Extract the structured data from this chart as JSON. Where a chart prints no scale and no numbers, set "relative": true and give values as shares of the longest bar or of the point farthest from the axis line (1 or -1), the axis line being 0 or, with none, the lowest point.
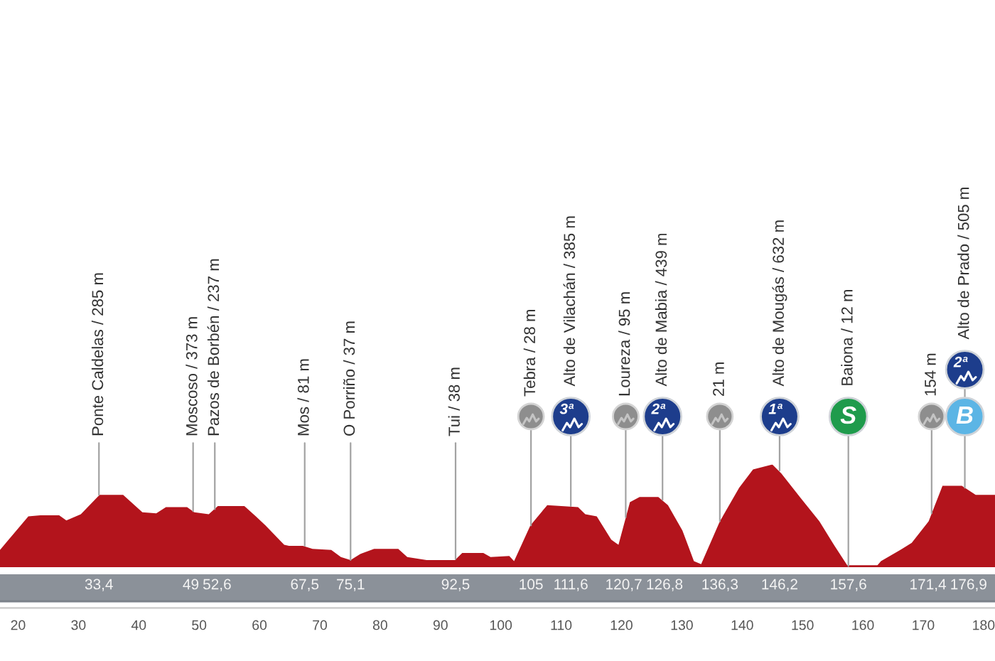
{
  "chart_data": {
    "type": "area",
    "relative": true,
    "color": "#b3141c",
    "x": [
      17.0,
      21.7,
      23.7,
      26.8,
      28.0,
      30.4,
      33.5,
      37.4,
      40.6,
      42.9,
      44.5,
      48.0,
      49.2,
      51.6,
      53.1,
      57.5,
      59.4,
      61.0,
      64.1,
      64.9,
      67.2,
      68.8,
      71.9,
      73.5,
      75.1,
      76.7,
      79.0,
      83.0,
      84.5,
      87.7,
      92.4,
      93.6,
      97.1,
      98.3,
      101.4,
      102.2,
      104.9,
      107.7,
      112.8,
      114.0,
      115.9,
      118.3,
      119.5,
      121.4,
      123.0,
      126.1,
      127.7,
      130.1,
      132.0,
      133.2,
      136.3,
      139.5,
      141.8,
      145.0,
      146.5,
      149.7,
      152.8,
      155.2,
      157.5,
      162.3,
      163.0,
      166.2,
      168.1,
      170.9,
      173.2,
      176.4,
      178.7,
      181.9
    ],
    "values": [
      0.16,
      0.49,
      0.5,
      0.5,
      0.45,
      0.51,
      0.7,
      0.7,
      0.53,
      0.52,
      0.58,
      0.58,
      0.53,
      0.51,
      0.59,
      0.59,
      0.49,
      0.4,
      0.21,
      0.2,
      0.2,
      0.17,
      0.16,
      0.09,
      0.06,
      0.12,
      0.17,
      0.17,
      0.09,
      0.06,
      0.06,
      0.13,
      0.13,
      0.09,
      0.1,
      0.05,
      0.4,
      0.6,
      0.58,
      0.51,
      0.49,
      0.26,
      0.21,
      0.63,
      0.68,
      0.68,
      0.6,
      0.35,
      0.05,
      0.02,
      0.44,
      0.77,
      0.95,
      1.0,
      0.91,
      0.67,
      0.44,
      0.21,
      0,
      0,
      0.05,
      0.16,
      0.23,
      0.44,
      0.79,
      0.79,
      0.7,
      0.7
    ],
    "xlim": [
      17.0,
      181.9
    ],
    "xticks": [
      20,
      30,
      40,
      50,
      60,
      70,
      80,
      90,
      100,
      110,
      120,
      130,
      140,
      150,
      160,
      170,
      180
    ],
    "x2lim": [
      17.0,
      181.9
    ],
    "x2ticks": [
      {
        "value": 33.4,
        "label": "33,4"
      },
      49,
      {
        "value": 52.6,
        "label": "52,6"
      },
      {
        "value": 67.5,
        "label": "67,5"
      },
      {
        "value": 75.1,
        "label": "75,1"
      },
      {
        "value": 92.5,
        "label": "92,5"
      },
      105,
      {
        "value": 111.6,
        "label": "111,6"
      },
      {
        "value": 120.7,
        "label": "120,7"
      },
      {
        "value": 126.8,
        "label": "126,8"
      },
      {
        "value": 136.3,
        "label": "136,3"
      },
      {
        "value": 146.2,
        "label": "146,2"
      },
      {
        "value": 157.6,
        "label": "157,6"
      },
      {
        "value": 171.4,
        "label": "171,4"
      },
      {
        "value": 176.9,
        "label": "176,9"
      }
    ],
    "annotations": [
      {
        "text": "Ponte Caldelas / 285 m",
        "x": 33.4,
        "y": 0.7
      },
      {
        "text": "Moscoso / 373 m",
        "x": 49,
        "y": 0.54
      },
      {
        "text": "Pazos de Borbén / 237 m",
        "x": 52.6,
        "y": 0.56
      },
      {
        "text": "Mos / 81 m",
        "x": 67.5,
        "y": 0.2
      },
      {
        "text": "O Porriño / 37 m",
        "x": 75.1,
        "y": 0.06
      },
      {
        "text": "Tui / 38 m",
        "x": 92.5,
        "y": 0.07
      },
      {
        "text": "Tebra / 28 m",
        "x": 105,
        "y": 0.4
      },
      {
        "text": "Alto de Vilachán / 385 m",
        "x": 111.6,
        "y": 0.59
      },
      {
        "text": "Loureza / 95 m",
        "x": 120.7,
        "y": 0.48
      },
      {
        "text": "Alto de Mabia / 439 m",
        "x": 126.8,
        "y": 0.65
      },
      {
        "text": "21 m",
        "x": 136.3,
        "y": 0.44
      },
      {
        "text": "Alto de Mougás / 632 m",
        "x": 146.2,
        "y": 0.94
      },
      {
        "text": "Baiona / 12 m",
        "x": 157.6,
        "y": 0
      },
      {
        "text": "154 m",
        "x": 171.4,
        "y": 0.52
      },
      {
        "text": "Alto de Prado / 505 m",
        "x": 176.9,
        "y": 0.77
      },
      "3ª",
      "2ª",
      "1ª",
      "S",
      "B",
      "2ª"
    ]
  }
}
